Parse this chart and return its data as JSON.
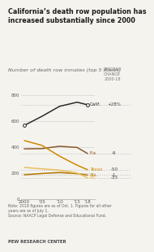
{
  "title": "California’s death row population has\nincreased substantially since 2000",
  "subtitle": "Number of death row inmates (top 5 states)",
  "percent_header": "PERCENT\nCHANGE\n2000-18",
  "note": "Note: 2018 figures are as of Oct. 1. Figures for all other\nyears are as of July 1.\nSource: NAACP Legal Defense and Educational Fund.",
  "footer": "PEW RESEARCH CENTER",
  "x_ticks": [
    2000,
    2005,
    2010,
    2015,
    2018
  ],
  "x_tick_labels": [
    "2000",
    "’05",
    "’10",
    "’15",
    "’18"
  ],
  "ylim": [
    0,
    900
  ],
  "y_ticks": [
    0,
    200,
    400,
    600,
    800
  ],
  "series": [
    {
      "name": "Calif.",
      "color": "#2a2a2a",
      "years": [
        2000,
        2005,
        2010,
        2015,
        2018
      ],
      "values": [
        567,
        637,
        714,
        746,
        726
      ],
      "pct_change": "+28%",
      "open_start": true
    },
    {
      "name": "Fla.",
      "color": "#8B5A2B",
      "years": [
        2000,
        2005,
        2010,
        2015,
        2018
      ],
      "values": [
        386,
        388,
        406,
        397,
        350
      ],
      "pct_change": "-9"
    },
    {
      "name": "Texas",
      "color": "#CC8800",
      "years": [
        2000,
        2005,
        2010,
        2015,
        2018
      ],
      "values": [
        450,
        413,
        330,
        260,
        225
      ],
      "pct_change": "-50"
    },
    {
      "name": "Ala.",
      "color": "#B87A00",
      "years": [
        2000,
        2005,
        2010,
        2015,
        2018
      ],
      "values": [
        186,
        196,
        204,
        195,
        184
      ],
      "pct_change": "-1"
    },
    {
      "name": "Pa.",
      "color": "#E8C060",
      "years": [
        2000,
        2005,
        2010,
        2015,
        2018
      ],
      "values": [
        243,
        232,
        222,
        200,
        163
      ],
      "pct_change": "-33"
    }
  ],
  "bg_color": "#f5f3ee",
  "panel_color": "#eae7dc",
  "grid_color": "#cccccc",
  "title_fontsize": 5.8,
  "subtitle_fontsize": 4.5,
  "tick_fontsize": 4.0,
  "label_fontsize": 4.0,
  "pct_fontsize": 4.0,
  "note_fontsize": 3.3,
  "footer_fontsize": 3.8
}
